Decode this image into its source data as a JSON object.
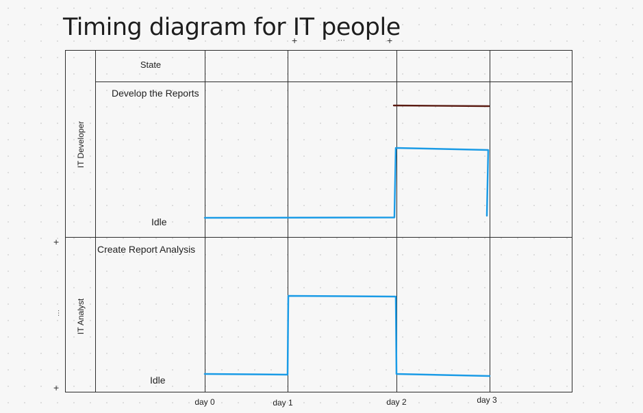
{
  "title": "Timing diagram for IT people",
  "table": {
    "state_header": "State"
  },
  "lanes": [
    {
      "name": "IT Developer",
      "states": [
        "Develop the Reports",
        "Idle"
      ],
      "timeline": [
        {
          "from": "day 0",
          "to": "day 2",
          "state": "Idle"
        },
        {
          "from": "day 2",
          "to": "day 3",
          "state": "Develop the Reports"
        }
      ],
      "line_color": "#1a9be6",
      "marker_color": "#5a1b12"
    },
    {
      "name": "IT Analyst",
      "states": [
        "Create Report Analysis",
        "Idle"
      ],
      "timeline": [
        {
          "from": "day 0",
          "to": "day 1",
          "state": "Idle"
        },
        {
          "from": "day 1",
          "to": "day 2",
          "state": "Create Report Analysis"
        },
        {
          "from": "day 2",
          "to": "day 3",
          "state": "Idle"
        }
      ],
      "line_color": "#1a9be6"
    }
  ],
  "time_axis": [
    "day 0",
    "day 1",
    "day 2",
    "day 3"
  ],
  "handles": {
    "plus": "+",
    "more": "···"
  },
  "colors": {
    "grid": "#2b2b2b",
    "signal": "#1a9be6",
    "marker": "#5a1b12",
    "background": "#f7f7f7"
  }
}
